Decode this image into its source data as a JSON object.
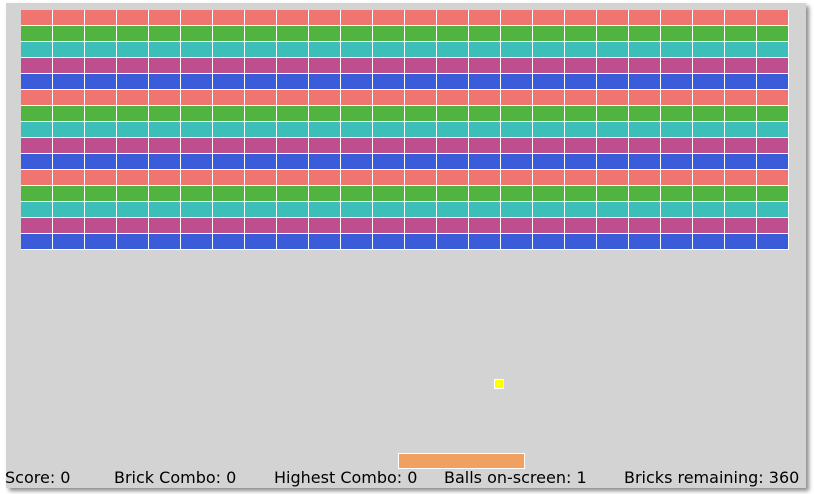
{
  "colors": {
    "background": "#d3d3d3",
    "ball": "#ffff00",
    "paddle": "#f0a060",
    "brick_rows": [
      "#f07470",
      "#52b440",
      "#3cbfb8",
      "#be4e8e",
      "#3a5cd8"
    ]
  },
  "bricks": {
    "columns": 24,
    "rows": 15,
    "row_color_pattern": [
      "red",
      "green",
      "teal",
      "magenta",
      "blue"
    ]
  },
  "status": {
    "score_label": "Score:",
    "score": "0",
    "brick_combo_label": "Brick Combo:",
    "brick_combo": "0",
    "highest_combo_label": "Highest Combo:",
    "highest_combo": "0",
    "balls_label": "Balls on-screen:",
    "balls": "1",
    "bricks_remaining_label": "Bricks remaining:",
    "bricks_remaining": "360"
  }
}
